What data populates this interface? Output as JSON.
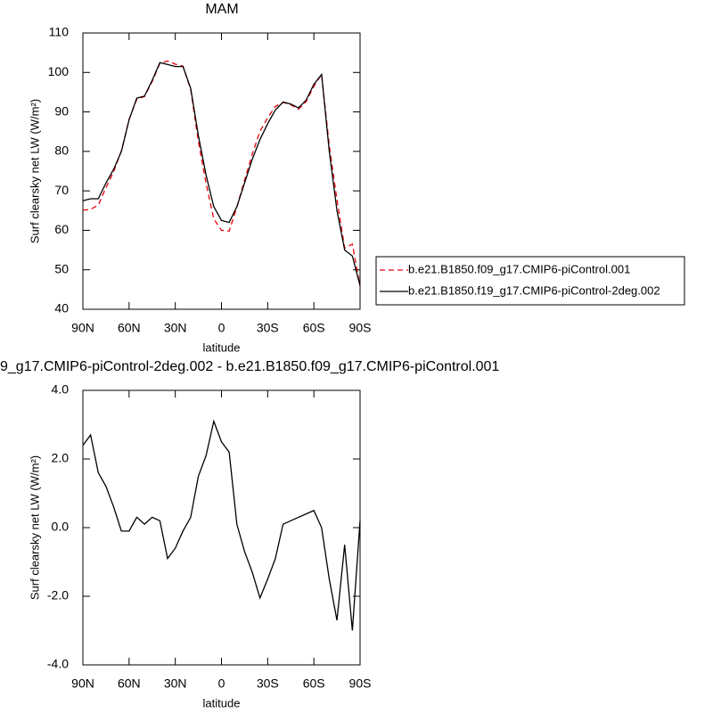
{
  "chart_data": [
    {
      "type": "line",
      "title": "MAM",
      "x_label": "latitude",
      "y_label": "Surf clearsky net LW (W/m²)",
      "x": [
        90,
        85,
        80,
        75,
        70,
        65,
        60,
        55,
        50,
        45,
        40,
        35,
        30,
        25,
        20,
        15,
        10,
        5,
        0,
        -5,
        -10,
        -15,
        -20,
        -25,
        -30,
        -35,
        -40,
        -45,
        -50,
        -55,
        -60,
        -65,
        -70,
        -75,
        -80,
        -85,
        -90
      ],
      "series": [
        {
          "name": "b.e21.B1850.f09_g17.CMIP6-piControl.001",
          "color": "#e8000b",
          "dash": true,
          "values": [
            65.1,
            65.3,
            66.4,
            70.8,
            74.9,
            80.1,
            88.1,
            93.2,
            93.9,
            97.7,
            102.3,
            102.9,
            102.1,
            101.6,
            95.7,
            82.5,
            71.9,
            62.9,
            60,
            59.8,
            65.9,
            72.7,
            79.3,
            85.1,
            88.5,
            91.4,
            92.4,
            91.8,
            90.7,
            92.6,
            96.5,
            99.5,
            81.5,
            67.7,
            55.5,
            56.5,
            45.8
          ]
        },
        {
          "name": "b.e21.B1850.f19_g17.CMIP6-piControl-2deg.002",
          "color": "#000000",
          "dash": false,
          "values": [
            67.5,
            68,
            68,
            72,
            75.5,
            80,
            88,
            93.5,
            94,
            98,
            102.5,
            102,
            101.5,
            101.5,
            96,
            84,
            74,
            66,
            62.5,
            62,
            66,
            72,
            78,
            83,
            87,
            90.5,
            92.5,
            92,
            91,
            93,
            97,
            99.5,
            80,
            65,
            55,
            53.5,
            46
          ]
        }
      ],
      "xlim": [
        90,
        -90
      ],
      "xticks": [
        {
          "value": 90,
          "label": "90N"
        },
        {
          "value": 60,
          "label": "60N"
        },
        {
          "value": 30,
          "label": "30N"
        },
        0,
        {
          "value": -30,
          "label": "30S"
        },
        {
          "value": -60,
          "label": "60S"
        },
        {
          "value": -90,
          "label": "90S"
        }
      ],
      "ylim": [
        40,
        110
      ],
      "yticks": [
        40,
        50,
        60,
        70,
        80,
        90,
        100,
        110
      ],
      "legend": "outside right"
    },
    {
      "type": "line",
      "title": "9_g17.CMIP6-piControl-2deg.002 - b.e21.B1850.f09_g17.CMIP6-piControl.001",
      "x_label": "latitude",
      "y_label": "Surf clearsky net LW (W/m²)",
      "x": [
        90,
        85,
        80,
        75,
        70,
        65,
        60,
        55,
        50,
        45,
        40,
        35,
        30,
        25,
        20,
        15,
        10,
        5,
        0,
        -5,
        -10,
        -15,
        -20,
        -25,
        -30,
        -35,
        -40,
        -45,
        -50,
        -55,
        -60,
        -65,
        -70,
        -75,
        -80,
        -85,
        -90
      ],
      "series": [
        {
          "color": "#000000",
          "dash": false,
          "values": [
            2.4,
            2.7,
            1.6,
            1.2,
            0.6,
            -0.1,
            -0.1,
            0.3,
            0.1,
            0.3,
            0.2,
            -0.9,
            -0.6,
            -0.1,
            0.3,
            1.5,
            2.1,
            3.1,
            2.5,
            2.2,
            0.1,
            -0.7,
            -1.3,
            -2.05,
            -1.5,
            -0.9,
            0.1,
            0.2,
            0.3,
            0.4,
            0.5,
            0,
            -1.5,
            -2.7,
            -0.5,
            -3,
            0.2
          ]
        }
      ],
      "xlim": [
        90,
        -90
      ],
      "xticks": [
        {
          "value": 90,
          "label": "90N"
        },
        {
          "value": 60,
          "label": "60N"
        },
        {
          "value": 30,
          "label": "30N"
        },
        0,
        {
          "value": -30,
          "label": "30S"
        },
        {
          "value": -60,
          "label": "60S"
        },
        {
          "value": -90,
          "label": "90S"
        }
      ],
      "ylim": [
        -4,
        4
      ],
      "yticks": [
        {
          "value": -4,
          "label": "-4.0"
        },
        {
          "value": -2,
          "label": "-2.0"
        },
        {
          "value": 0,
          "label": "0.0"
        },
        {
          "value": 2,
          "label": "2.0"
        },
        {
          "value": 4,
          "label": "4.0"
        }
      ]
    }
  ]
}
